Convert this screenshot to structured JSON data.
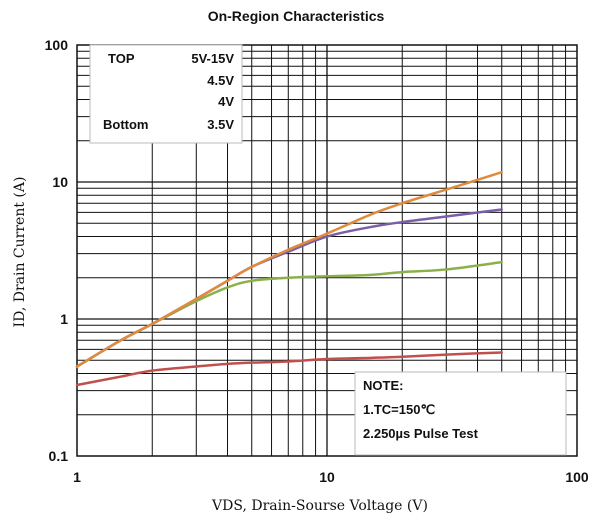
{
  "chart_data": {
    "type": "line",
    "title": "On-Region Characteristics",
    "xlabel": "VDS, Drain-Sourse Voltage (V)",
    "ylabel": "ID, Drain Current (A)",
    "x_scale": "log",
    "y_scale": "log",
    "xlim": [
      1,
      100
    ],
    "ylim": [
      0.1,
      100
    ],
    "x_ticks": [
      "1",
      "10",
      "100"
    ],
    "y_ticks": [
      "0.1",
      "1",
      "10",
      "100"
    ],
    "grid": true,
    "legend": {
      "placement": "top-left",
      "rows": [
        {
          "label": "TOP",
          "value": "5V-15V"
        },
        {
          "label": "",
          "value": "4.5V"
        },
        {
          "label": "",
          "value": "4V"
        },
        {
          "label": "Bottom",
          "value": "3.5V"
        }
      ]
    },
    "note": {
      "placement": "bottom-right",
      "lines": [
        "NOTE:",
        "1.TC=150℃",
        "2.250µs Pulse Test"
      ]
    },
    "series": [
      {
        "color": "#e08a3c",
        "x": [
          1,
          1.5,
          2,
          3,
          4,
          5,
          7,
          10,
          15,
          20,
          30,
          50
        ],
        "y": [
          0.45,
          0.7,
          0.92,
          1.4,
          1.9,
          2.4,
          3.2,
          4.2,
          5.8,
          7.0,
          8.8,
          11.8
        ]
      },
      {
        "color": "#7a5ea8",
        "x": [
          1,
          1.5,
          2,
          3,
          4,
          5,
          7,
          10,
          15,
          20,
          30,
          50
        ],
        "y": [
          0.45,
          0.7,
          0.92,
          1.4,
          1.9,
          2.4,
          3.1,
          4.0,
          4.7,
          5.1,
          5.6,
          6.3
        ]
      },
      {
        "color": "#8bb04a",
        "x": [
          1,
          1.5,
          2,
          3,
          4,
          5,
          7,
          10,
          15,
          20,
          30,
          50
        ],
        "y": [
          0.45,
          0.7,
          0.92,
          1.35,
          1.7,
          1.9,
          2.0,
          2.05,
          2.1,
          2.2,
          2.3,
          2.6
        ]
      },
      {
        "color": "#c0504d",
        "x": [
          1,
          1.5,
          2,
          3,
          4,
          5,
          7,
          10,
          15,
          20,
          30,
          50
        ],
        "y": [
          0.33,
          0.38,
          0.42,
          0.45,
          0.47,
          0.48,
          0.49,
          0.51,
          0.52,
          0.53,
          0.55,
          0.57
        ]
      }
    ]
  }
}
